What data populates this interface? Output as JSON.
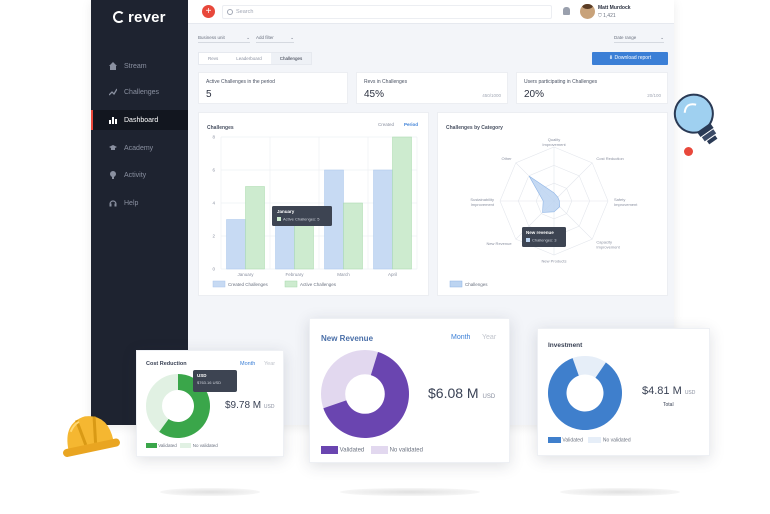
{
  "brand": "rever",
  "sidebar": {
    "items": [
      {
        "label": "Stream",
        "icon": "home-icon",
        "active": false
      },
      {
        "label": "Challenges",
        "icon": "chart-line-icon",
        "active": false
      },
      {
        "label": "Dashboard",
        "icon": "bar-chart-icon",
        "active": true
      },
      {
        "label": "Academy",
        "icon": "graduation-cap-icon",
        "active": false
      },
      {
        "label": "Activity",
        "icon": "bulb-icon",
        "active": false
      },
      {
        "label": "Help",
        "icon": "headset-icon",
        "active": false
      }
    ]
  },
  "topbar": {
    "add_label": "+",
    "search_placeholder": "Search",
    "user_name": "Matt Murdock",
    "user_points": "1,421"
  },
  "filters": {
    "business_unit": "Business unit",
    "add_filter": "Add filter",
    "date_range": "Date range"
  },
  "tabs": [
    {
      "label": "Revs",
      "active": false
    },
    {
      "label": "Leaderboard",
      "active": false
    },
    {
      "label": "Challenges",
      "active": true
    }
  ],
  "download_label": "Download report",
  "kpis": [
    {
      "label": "Active Challenges in the period",
      "value": "5",
      "sub": ""
    },
    {
      "label": "Revs in Challenges",
      "value": "45%",
      "sub": "450/1000"
    },
    {
      "label": "Users participating in Challenges",
      "value": "20%",
      "sub": "20/100"
    }
  ],
  "challenges_chart": {
    "title": "Challenges",
    "toggle": [
      "Created",
      "Period"
    ],
    "chart_data": {
      "type": "bar",
      "categories": [
        "January",
        "February",
        "March",
        "April"
      ],
      "series": [
        {
          "name": "Created Challenges",
          "values": [
            3,
            3,
            6,
            6
          ]
        },
        {
          "name": "Active Challenges",
          "values": [
            5,
            3,
            4,
            8
          ]
        }
      ],
      "yticks": [
        "0",
        "2",
        "4",
        "6",
        "8"
      ],
      "ylim": [
        0,
        8
      ],
      "grid": true,
      "legend": "bottom-left",
      "tooltip": {
        "title": "January",
        "text": "Active Challenges: 5"
      }
    },
    "colors": {
      "created": "#c7daf3",
      "active": "#cdebcf"
    }
  },
  "category_chart": {
    "title": "Challenges by Category",
    "axes": [
      "Quality Improvement",
      "Cost Reduction",
      "Safety Improvement",
      "Capacity Improvement",
      "New Products",
      "New Revenue",
      "Sustainability Improvement",
      "Other"
    ],
    "values": [
      0.15,
      0.1,
      0.1,
      0.15,
      0.2,
      0.3,
      0.2,
      0.65
    ],
    "tooltip": {
      "title": "New revenue",
      "text": "Challenges: 3"
    },
    "legend": "Challenges"
  },
  "cost_reduction": {
    "title": "Cost Reduction",
    "toggle": [
      "Month",
      "Year"
    ],
    "value": "$9.78 M",
    "unit": "USD",
    "validated_fraction": 0.6,
    "tooltip": {
      "title": "USD",
      "text": "$763.16 USD"
    },
    "legend": [
      "Validated",
      "No validated"
    ],
    "colors": {
      "validated": "#3aa64a",
      "other": "#e1f1e3"
    }
  },
  "new_revenue": {
    "title": "New Revenue",
    "toggle": [
      "Month",
      "Year"
    ],
    "value": "$6.08 M",
    "unit": "USD",
    "validated_fraction": 0.65,
    "legend": [
      "Validated",
      "No validated"
    ],
    "colors": {
      "validated": "#6a45b0",
      "other": "#e2d8ef"
    }
  },
  "investment": {
    "title": "Investment",
    "value": "$4.81 M",
    "unit": "USD",
    "total_label": "Total",
    "validated_fraction": 0.85,
    "legend": [
      "Validated",
      "No validated"
    ],
    "colors": {
      "validated": "#3f7fcc",
      "other": "#e6eef8"
    }
  }
}
